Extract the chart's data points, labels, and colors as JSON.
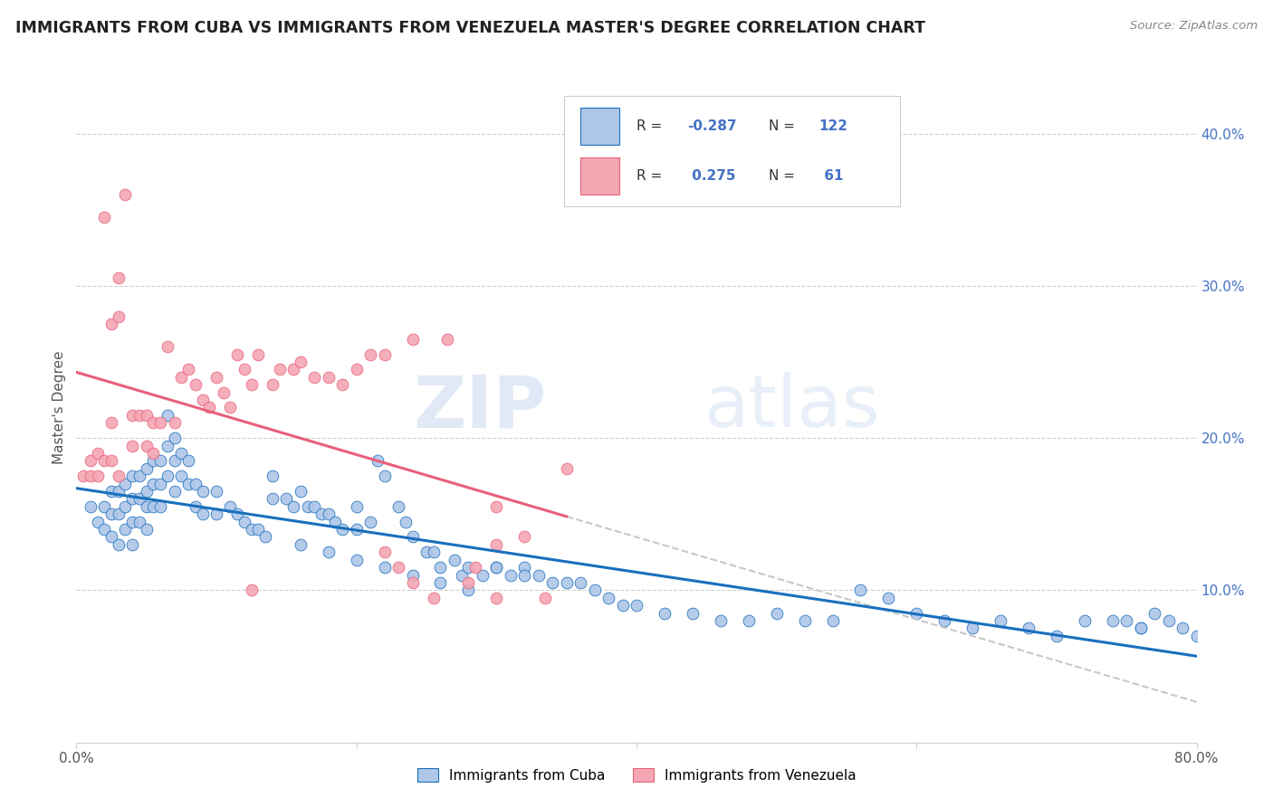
{
  "title": "IMMIGRANTS FROM CUBA VS IMMIGRANTS FROM VENEZUELA MASTER'S DEGREE CORRELATION CHART",
  "source": "Source: ZipAtlas.com",
  "ylabel": "Master's Degree",
  "right_yticks": [
    "10.0%",
    "20.0%",
    "30.0%",
    "40.0%"
  ],
  "right_ytick_vals": [
    0.1,
    0.2,
    0.3,
    0.4
  ],
  "legend_cuba": "Immigrants from Cuba",
  "legend_venezuela": "Immigrants from Venezuela",
  "color_cuba": "#aec6e8",
  "color_venezuela": "#f4a7b3",
  "color_cuba_line": "#1a6fbd",
  "color_venezuela_line": "#e8607a",
  "color_dashed": "#c8c8c8",
  "watermark_zip": "ZIP",
  "watermark_atlas": "atlas",
  "xlim": [
    0.0,
    0.8
  ],
  "ylim": [
    0.0,
    0.44
  ],
  "cuba_x": [
    0.01,
    0.015,
    0.02,
    0.02,
    0.025,
    0.025,
    0.025,
    0.03,
    0.03,
    0.03,
    0.035,
    0.035,
    0.035,
    0.04,
    0.04,
    0.04,
    0.04,
    0.045,
    0.045,
    0.045,
    0.05,
    0.05,
    0.05,
    0.05,
    0.055,
    0.055,
    0.055,
    0.06,
    0.06,
    0.06,
    0.065,
    0.065,
    0.065,
    0.07,
    0.07,
    0.07,
    0.075,
    0.075,
    0.08,
    0.08,
    0.085,
    0.085,
    0.09,
    0.09,
    0.1,
    0.1,
    0.11,
    0.115,
    0.12,
    0.125,
    0.13,
    0.135,
    0.14,
    0.14,
    0.15,
    0.155,
    0.16,
    0.165,
    0.17,
    0.175,
    0.18,
    0.185,
    0.19,
    0.2,
    0.2,
    0.21,
    0.215,
    0.22,
    0.23,
    0.235,
    0.24,
    0.25,
    0.255,
    0.26,
    0.27,
    0.275,
    0.28,
    0.29,
    0.3,
    0.31,
    0.32,
    0.33,
    0.34,
    0.35,
    0.36,
    0.37,
    0.38,
    0.39,
    0.4,
    0.42,
    0.44,
    0.46,
    0.48,
    0.5,
    0.52,
    0.54,
    0.56,
    0.58,
    0.6,
    0.62,
    0.64,
    0.66,
    0.68,
    0.7,
    0.72,
    0.74,
    0.76,
    0.77,
    0.78,
    0.79,
    0.8,
    0.75,
    0.76,
    0.3,
    0.32,
    0.16,
    0.18,
    0.2,
    0.22,
    0.24,
    0.26,
    0.28
  ],
  "cuba_y": [
    0.155,
    0.145,
    0.155,
    0.14,
    0.165,
    0.15,
    0.135,
    0.165,
    0.15,
    0.13,
    0.17,
    0.155,
    0.14,
    0.175,
    0.16,
    0.145,
    0.13,
    0.175,
    0.16,
    0.145,
    0.18,
    0.165,
    0.155,
    0.14,
    0.185,
    0.17,
    0.155,
    0.185,
    0.17,
    0.155,
    0.215,
    0.195,
    0.175,
    0.2,
    0.185,
    0.165,
    0.19,
    0.175,
    0.185,
    0.17,
    0.17,
    0.155,
    0.165,
    0.15,
    0.165,
    0.15,
    0.155,
    0.15,
    0.145,
    0.14,
    0.14,
    0.135,
    0.175,
    0.16,
    0.16,
    0.155,
    0.165,
    0.155,
    0.155,
    0.15,
    0.15,
    0.145,
    0.14,
    0.155,
    0.14,
    0.145,
    0.185,
    0.175,
    0.155,
    0.145,
    0.135,
    0.125,
    0.125,
    0.115,
    0.12,
    0.11,
    0.115,
    0.11,
    0.115,
    0.11,
    0.115,
    0.11,
    0.105,
    0.105,
    0.105,
    0.1,
    0.095,
    0.09,
    0.09,
    0.085,
    0.085,
    0.08,
    0.08,
    0.085,
    0.08,
    0.08,
    0.1,
    0.095,
    0.085,
    0.08,
    0.075,
    0.08,
    0.075,
    0.07,
    0.08,
    0.08,
    0.075,
    0.085,
    0.08,
    0.075,
    0.07,
    0.08,
    0.075,
    0.115,
    0.11,
    0.13,
    0.125,
    0.12,
    0.115,
    0.11,
    0.105,
    0.1
  ],
  "venezuela_x": [
    0.005,
    0.01,
    0.01,
    0.015,
    0.015,
    0.02,
    0.02,
    0.025,
    0.025,
    0.025,
    0.03,
    0.03,
    0.03,
    0.035,
    0.04,
    0.04,
    0.045,
    0.05,
    0.05,
    0.055,
    0.055,
    0.06,
    0.065,
    0.07,
    0.075,
    0.08,
    0.085,
    0.09,
    0.095,
    0.1,
    0.105,
    0.11,
    0.115,
    0.12,
    0.125,
    0.13,
    0.14,
    0.145,
    0.155,
    0.16,
    0.17,
    0.18,
    0.19,
    0.2,
    0.21,
    0.22,
    0.24,
    0.265,
    0.28,
    0.3,
    0.3,
    0.32,
    0.335,
    0.35,
    0.125,
    0.22,
    0.23,
    0.24,
    0.255,
    0.285,
    0.3
  ],
  "venezuela_y": [
    0.175,
    0.185,
    0.175,
    0.19,
    0.175,
    0.345,
    0.185,
    0.275,
    0.21,
    0.185,
    0.305,
    0.28,
    0.175,
    0.36,
    0.215,
    0.195,
    0.215,
    0.215,
    0.195,
    0.21,
    0.19,
    0.21,
    0.26,
    0.21,
    0.24,
    0.245,
    0.235,
    0.225,
    0.22,
    0.24,
    0.23,
    0.22,
    0.255,
    0.245,
    0.235,
    0.255,
    0.235,
    0.245,
    0.245,
    0.25,
    0.24,
    0.24,
    0.235,
    0.245,
    0.255,
    0.255,
    0.265,
    0.265,
    0.105,
    0.13,
    0.155,
    0.135,
    0.095,
    0.18,
    0.1,
    0.125,
    0.115,
    0.105,
    0.095,
    0.115,
    0.095
  ]
}
